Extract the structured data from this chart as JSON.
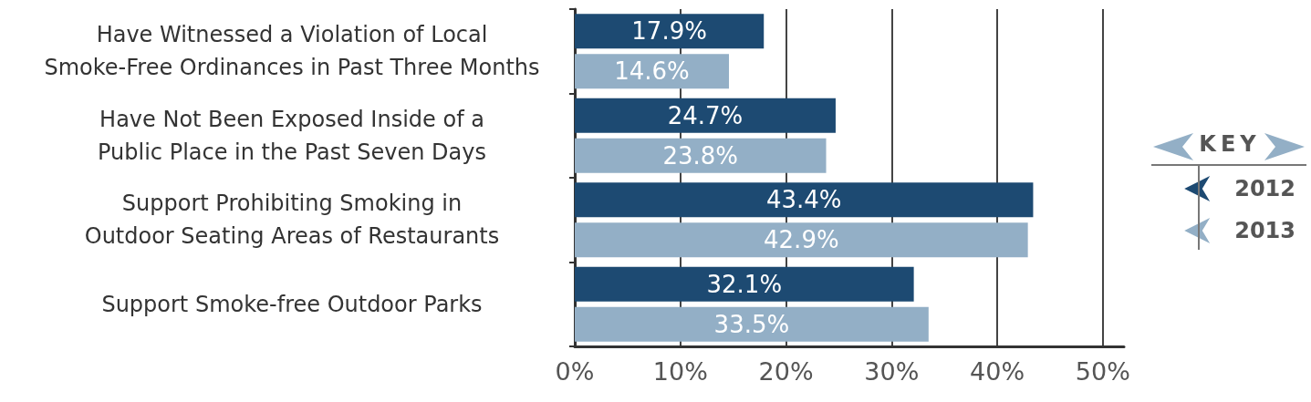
{
  "chart_data": {
    "type": "bar",
    "orientation": "horizontal",
    "categories": [
      "Have Witnessed a Violation of Local\nSmoke-Free Ordinances in Past Three Months",
      "Have Not Been Exposed Inside of a\nPublic Place in the Past Seven Days",
      "Support Prohibiting Smoking in\nOutdoor Seating Areas of Restaurants",
      "Support Smoke-free Outdoor Parks"
    ],
    "series": [
      {
        "name": "2012",
        "color": "#1d4a72",
        "values": [
          17.9,
          24.7,
          43.4,
          32.1
        ],
        "value_labels": [
          "17.9%",
          "24.7%",
          "43.4%",
          "32.1%"
        ]
      },
      {
        "name": "2013",
        "color": "#93afc6",
        "values": [
          14.6,
          23.8,
          42.9,
          33.5
        ],
        "value_labels": [
          "14.6%",
          "23.8%",
          "42.9%",
          "33.5%"
        ]
      }
    ],
    "xlim": [
      0,
      52
    ],
    "xticks": [
      {
        "value": 0,
        "label": "0%"
      },
      {
        "value": 10,
        "label": "10%"
      },
      {
        "value": 20,
        "label": "20%"
      },
      {
        "value": 30,
        "label": "30%"
      },
      {
        "value": 40,
        "label": "40%"
      },
      {
        "value": 50,
        "label": "50%"
      }
    ],
    "grid": "x",
    "legend": "right",
    "legend_title": "KEY"
  }
}
